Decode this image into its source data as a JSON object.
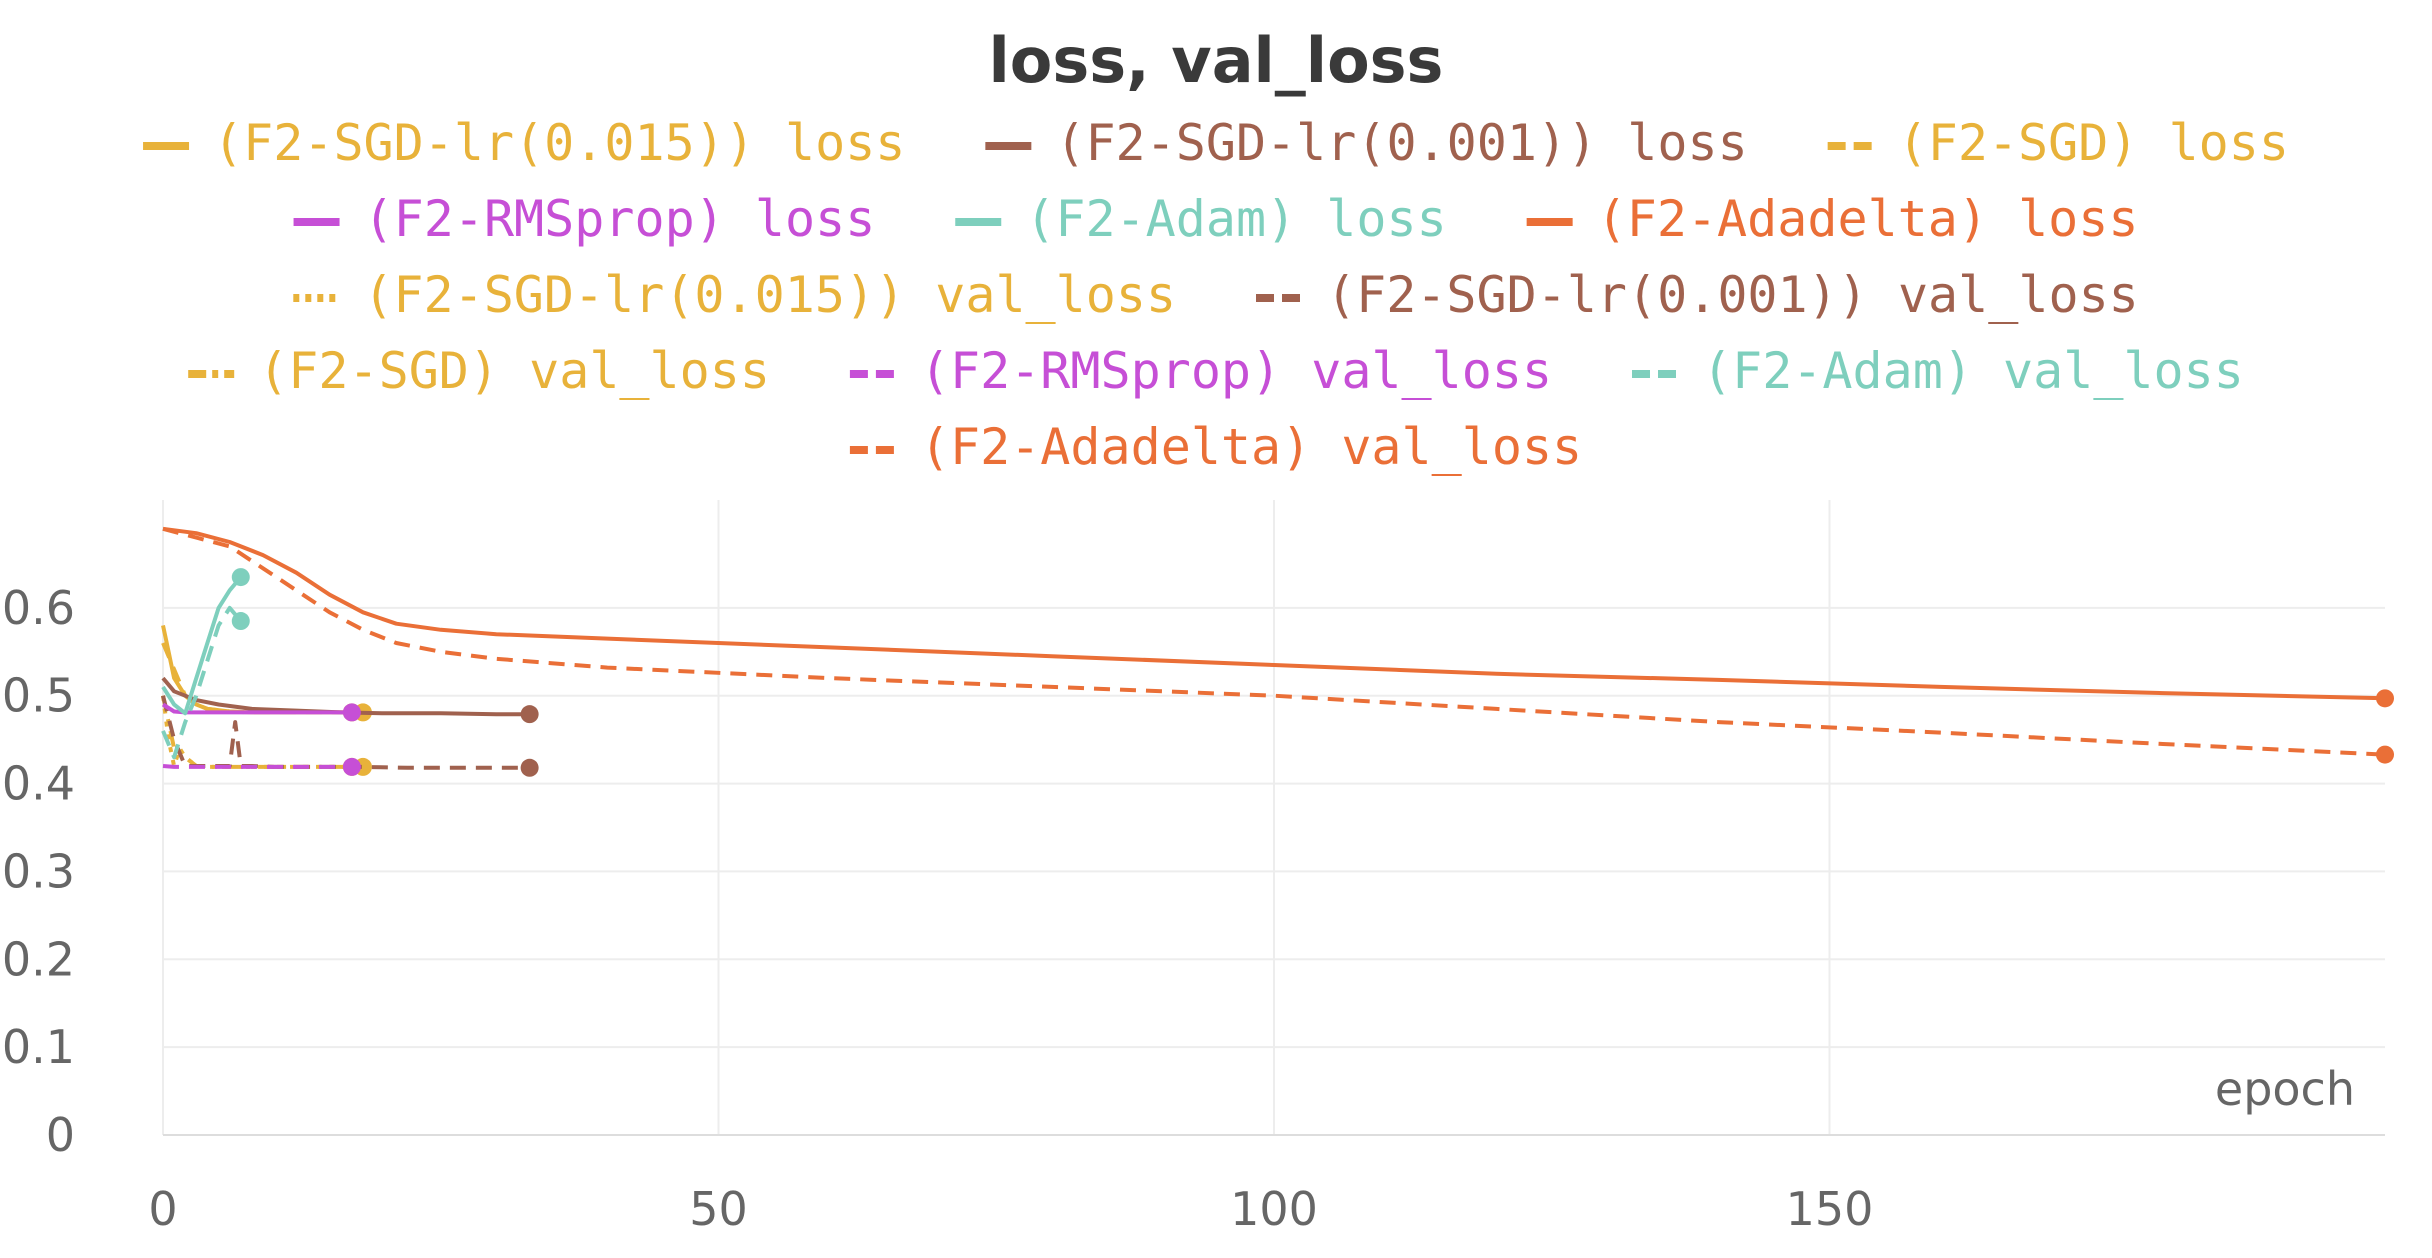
{
  "chart_data": {
    "type": "line",
    "title": "loss, val_loss",
    "xlabel": "epoch",
    "ylabel": "",
    "xlim": [
      0,
      200
    ],
    "ylim": [
      0,
      0.7
    ],
    "x_ticks": [
      "0",
      "50",
      "100",
      "150"
    ],
    "y_ticks": [
      "0",
      "0.1",
      "0.2",
      "0.3",
      "0.4",
      "0.5",
      "0.6"
    ],
    "grid": true,
    "legend_position": "top",
    "series": [
      {
        "name": "(F2-SGD-lr(0.015)) loss",
        "color": "#e8b23a",
        "dash": "solid",
        "x": [
          0,
          0.5,
          1,
          2,
          3,
          4,
          6,
          8,
          10,
          12,
          14,
          16,
          18
        ],
        "y": [
          0.58,
          0.55,
          0.52,
          0.5,
          0.49,
          0.485,
          0.482,
          0.481,
          0.481,
          0.481,
          0.481,
          0.481,
          0.481
        ]
      },
      {
        "name": "(F2-SGD-lr(0.001)) loss",
        "color": "#a0614e",
        "dash": "solid",
        "x": [
          0,
          1,
          2,
          3,
          5,
          8,
          12,
          16,
          20,
          25,
          30,
          33
        ],
        "y": [
          0.52,
          0.505,
          0.5,
          0.495,
          0.49,
          0.485,
          0.483,
          0.481,
          0.48,
          0.48,
          0.479,
          0.479
        ]
      },
      {
        "name": "(F2-SGD) loss",
        "color": "#e8b23a",
        "dash": "dash",
        "x": [
          0,
          1,
          2,
          3,
          4,
          6,
          8,
          10,
          12,
          14,
          16,
          17
        ],
        "y": [
          0.56,
          0.53,
          0.5,
          0.49,
          0.485,
          0.482,
          0.481,
          0.481,
          0.481,
          0.481,
          0.481,
          0.481
        ]
      },
      {
        "name": "(F2-RMSprop) loss",
        "color": "#c64fd6",
        "dash": "solid",
        "x": [
          0,
          1,
          2,
          3,
          5,
          8,
          10,
          12,
          14,
          16,
          17
        ],
        "y": [
          0.49,
          0.482,
          0.481,
          0.481,
          0.481,
          0.481,
          0.481,
          0.481,
          0.481,
          0.481,
          0.481
        ]
      },
      {
        "name": "(F2-Adam) loss",
        "color": "#7ecfbd",
        "dash": "solid",
        "x": [
          0,
          1,
          2,
          3,
          4,
          5,
          6,
          7
        ],
        "y": [
          0.51,
          0.49,
          0.48,
          0.52,
          0.56,
          0.6,
          0.62,
          0.635
        ]
      },
      {
        "name": "(F2-Adadelta) loss",
        "color": "#ea6f37",
        "dash": "solid",
        "x": [
          0,
          3,
          6,
          9,
          12,
          15,
          18,
          21,
          25,
          30,
          40,
          60,
          80,
          100,
          120,
          140,
          160,
          180,
          200
        ],
        "y": [
          0.69,
          0.685,
          0.675,
          0.66,
          0.64,
          0.615,
          0.595,
          0.582,
          0.575,
          0.57,
          0.565,
          0.555,
          0.545,
          0.535,
          0.525,
          0.518,
          0.51,
          0.503,
          0.497
        ]
      },
      {
        "name": "(F2-SGD-lr(0.015)) val_loss",
        "color": "#e8b23a",
        "dash": "dot",
        "x": [
          0,
          0.5,
          1,
          1.5,
          2,
          3,
          4,
          6,
          8,
          10,
          12,
          14,
          16,
          18
        ],
        "y": [
          0.5,
          0.45,
          0.42,
          0.44,
          0.43,
          0.42,
          0.419,
          0.419,
          0.419,
          0.419,
          0.419,
          0.419,
          0.419,
          0.419
        ]
      },
      {
        "name": "(F2-SGD-lr(0.001)) val_loss",
        "color": "#a0614e",
        "dash": "dash",
        "x": [
          0,
          1,
          2,
          3,
          4,
          5,
          6,
          6.5,
          7,
          8,
          10,
          14,
          18,
          22,
          26,
          30,
          33
        ],
        "y": [
          0.5,
          0.45,
          0.42,
          0.42,
          0.42,
          0.42,
          0.42,
          0.47,
          0.42,
          0.42,
          0.419,
          0.419,
          0.419,
          0.418,
          0.418,
          0.418,
          0.418
        ]
      },
      {
        "name": "(F2-SGD) val_loss",
        "color": "#e8b23a",
        "dash": "dashdot",
        "x": [
          0,
          1,
          2,
          3,
          4,
          6,
          8,
          10,
          12,
          14,
          16,
          17
        ],
        "y": [
          0.5,
          0.44,
          0.43,
          0.42,
          0.419,
          0.419,
          0.419,
          0.419,
          0.419,
          0.419,
          0.419,
          0.419
        ]
      },
      {
        "name": "(F2-RMSprop) val_loss",
        "color": "#c64fd6",
        "dash": "dash",
        "x": [
          0,
          1,
          2,
          4,
          6,
          8,
          10,
          12,
          14,
          16,
          17
        ],
        "y": [
          0.42,
          0.419,
          0.419,
          0.419,
          0.419,
          0.419,
          0.419,
          0.419,
          0.419,
          0.419,
          0.419
        ]
      },
      {
        "name": "(F2-Adam) val_loss",
        "color": "#7ecfbd",
        "dash": "dash",
        "x": [
          0,
          1,
          2,
          3,
          4,
          5,
          6,
          7
        ],
        "y": [
          0.46,
          0.43,
          0.47,
          0.5,
          0.54,
          0.58,
          0.6,
          0.585
        ]
      },
      {
        "name": "(F2-Adadelta) val_loss",
        "color": "#ea6f37",
        "dash": "dash",
        "x": [
          0,
          3,
          6,
          9,
          12,
          15,
          18,
          21,
          25,
          30,
          40,
          60,
          80,
          100,
          120,
          140,
          160,
          180,
          200
        ],
        "y": [
          0.69,
          0.68,
          0.67,
          0.645,
          0.62,
          0.595,
          0.575,
          0.56,
          0.55,
          0.542,
          0.532,
          0.52,
          0.51,
          0.5,
          0.485,
          0.47,
          0.458,
          0.445,
          0.433
        ]
      }
    ]
  }
}
